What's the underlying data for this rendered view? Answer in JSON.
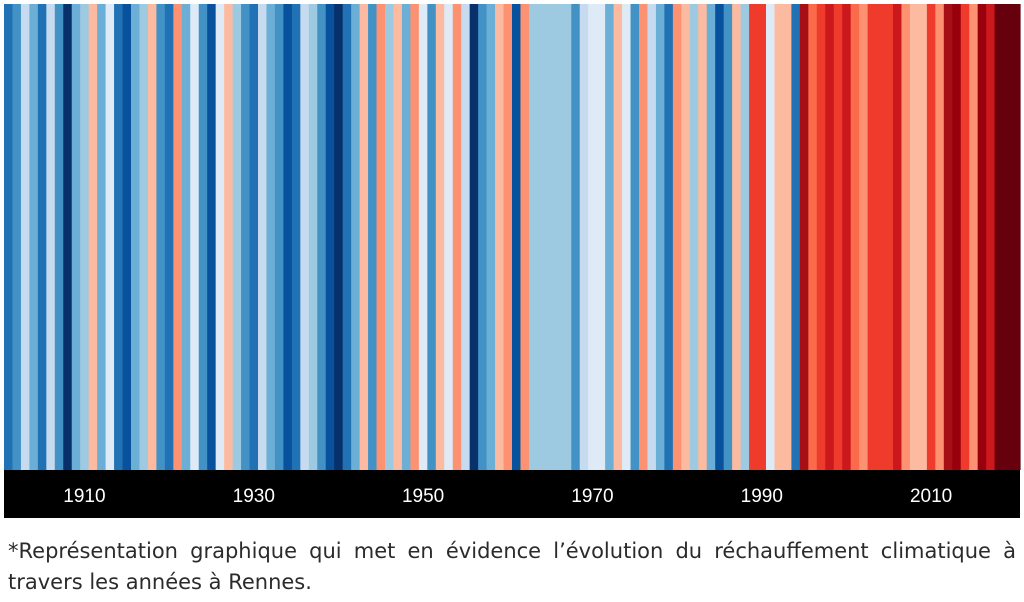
{
  "chart_data": {
    "type": "heatmap",
    "title": "",
    "xlabel": "",
    "ylabel": "",
    "x": [
      1901,
      1902,
      1903,
      1904,
      1905,
      1906,
      1907,
      1908,
      1909,
      1910,
      1911,
      1912,
      1913,
      1914,
      1915,
      1916,
      1917,
      1918,
      1919,
      1920,
      1921,
      1922,
      1923,
      1924,
      1925,
      1926,
      1927,
      1928,
      1929,
      1930,
      1931,
      1932,
      1933,
      1934,
      1935,
      1936,
      1937,
      1938,
      1939,
      1940,
      1941,
      1942,
      1943,
      1944,
      1945,
      1946,
      1947,
      1948,
      1949,
      1950,
      1951,
      1952,
      1953,
      1954,
      1955,
      1956,
      1957,
      1958,
      1959,
      1960,
      1961,
      1962,
      1963,
      1964,
      1965,
      1966,
      1967,
      1968,
      1969,
      1970,
      1971,
      1972,
      1973,
      1974,
      1975,
      1976,
      1977,
      1978,
      1979,
      1980,
      1981,
      1982,
      1983,
      1984,
      1985,
      1986,
      1987,
      1988,
      1989,
      1990,
      1991,
      1992,
      1993,
      1994,
      1995,
      1996,
      1997,
      1998,
      1999,
      2000,
      2001,
      2002,
      2003,
      2004,
      2005,
      2006,
      2007,
      2008,
      2009,
      2010,
      2011,
      2012,
      2013,
      2014,
      2015,
      2016,
      2017,
      2018,
      2019,
      2020
    ],
    "stripe_colors": [
      "#2171b5",
      "#4292c6",
      "#c6dbef",
      "#6baed6",
      "#2171b5",
      "#c6dbef",
      "#4292c6",
      "#08306b",
      "#6baed6",
      "#9ecae1",
      "#fcbba1",
      "#6baed6",
      "#deebf7",
      "#2171b5",
      "#08519c",
      "#6baed6",
      "#9ecae1",
      "#fcbba1",
      "#4292c6",
      "#2171b5",
      "#fc9272",
      "#6baed6",
      "#deebf7",
      "#4292c6",
      "#08519c",
      "#deebf7",
      "#fcbba1",
      "#9ecae1",
      "#4292c6",
      "#2171b5",
      "#c6dbef",
      "#6baed6",
      "#4292c6",
      "#08519c",
      "#2171b5",
      "#c6dbef",
      "#9ecae1",
      "#4292c6",
      "#08519c",
      "#08306b",
      "#2171b5",
      "#6baed6",
      "#fcbba1",
      "#4292c6",
      "#fc9272",
      "#9ecae1",
      "#fcbba1",
      "#6baed6",
      "#fc9272",
      "#deebf7",
      "#4292c6",
      "#fcbba1",
      "#deebf7",
      "#fc9272",
      "#c6dbef",
      "#08306b",
      "#4292c6",
      "#6baed6",
      "#fcbba1",
      "#fc9272",
      "#08519c",
      "#fc9272",
      "#9ecae1",
      "#9ecae1",
      "#9ecae1",
      "#9ecae1",
      "#9ecae1",
      "#4292c6",
      "#c6dbef",
      "#deebf7",
      "#deebf7",
      "#6baed6",
      "#fcbba1",
      "#deebf7",
      "#4292c6",
      "#fc9272",
      "#c6dbef",
      "#6baed6",
      "#2171b5",
      "#fc9272",
      "#fcbba1",
      "#9ecae1",
      "#fcbba1",
      "#6baed6",
      "#08519c",
      "#4292c6",
      "#fcbba1",
      "#9ecae1",
      "#ef3b2c",
      "#ef3b2c",
      "#deebf7",
      "#fcbba1",
      "#fcbba1",
      "#2171b5",
      "#a50f15",
      "#fb6a4a",
      "#ef3b2c",
      "#cb181d",
      "#ef3b2c",
      "#cb181d",
      "#fb6a4a",
      "#fc9272",
      "#ef3b2c",
      "#ef3b2c",
      "#ef3b2c",
      "#cb181d",
      "#fc9272",
      "#fcbba1",
      "#fcbba1",
      "#ef3b2c",
      "#fc9272",
      "#a50f15",
      "#99000d",
      "#ef3b2c",
      "#fc9272",
      "#99000d",
      "#cb181d",
      "#67000d",
      "#67000d",
      "#67000d"
    ],
    "x_tick_labels": [
      "1910",
      "1930",
      "1950",
      "1970",
      "1990",
      "2010"
    ],
    "grid": false,
    "legend": "none"
  },
  "axis_bar_color": "#000000",
  "tick_color": "#ffffff",
  "caption": "*Représentation graphique qui met en évidence l’évolution du réchauffement climatique à travers les années à Rennes."
}
